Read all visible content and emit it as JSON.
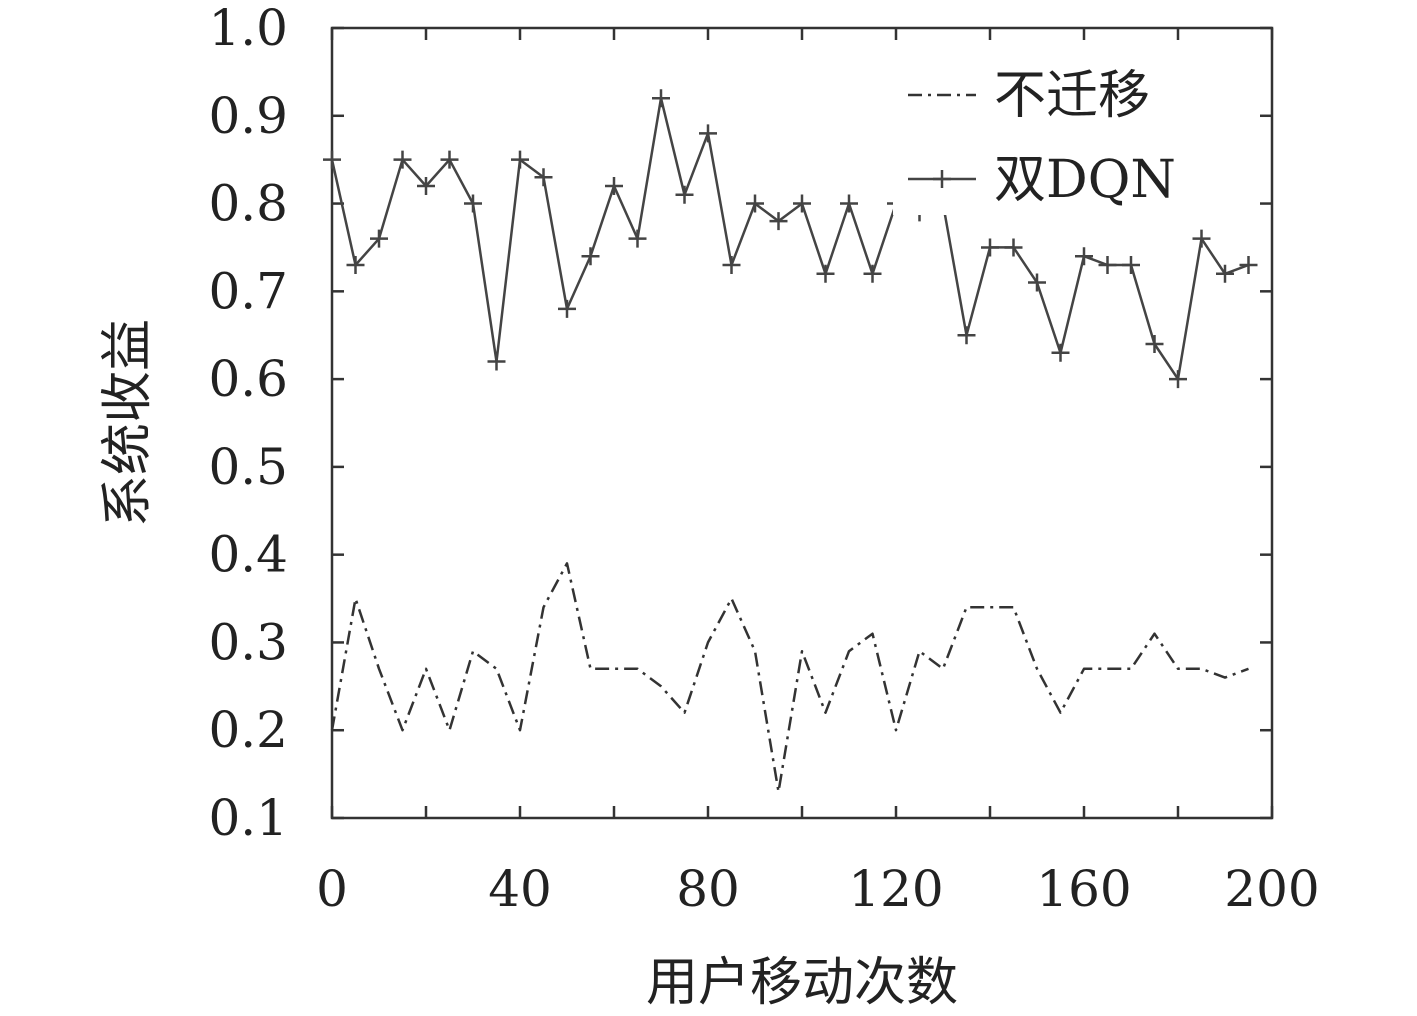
{
  "chart_data": {
    "type": "line",
    "xlabel": "用户移动次数",
    "ylabel": "系统收益",
    "xlim": [
      0,
      200
    ],
    "ylim": [
      0.1,
      1.0
    ],
    "x_ticks": [
      0,
      40,
      80,
      120,
      160,
      200
    ],
    "x_tick_labels": [
      "0",
      "40",
      "80",
      "120",
      "160",
      "200"
    ],
    "y_ticks": [
      0.1,
      0.2,
      0.3,
      0.4,
      0.5,
      0.6,
      0.7,
      0.8,
      0.9,
      1.0
    ],
    "y_tick_labels": [
      "0.1",
      "0.2",
      "0.3",
      "0.4",
      "0.5",
      "0.6",
      "0.7",
      "0.8",
      "0.9",
      "1.0"
    ],
    "grid": false,
    "legend_position": "top-right",
    "x": [
      0,
      5,
      10,
      15,
      20,
      25,
      30,
      35,
      40,
      45,
      50,
      55,
      60,
      65,
      70,
      75,
      80,
      85,
      90,
      95,
      100,
      105,
      110,
      115,
      120,
      125,
      130,
      135,
      140,
      145,
      150,
      155,
      160,
      165,
      170,
      175,
      180,
      185,
      190,
      195
    ],
    "series": [
      {
        "name": "不迁移",
        "style": "dash-dot",
        "color": "#333333",
        "values": [
          0.2,
          0.35,
          0.27,
          0.2,
          0.27,
          0.2,
          0.29,
          0.27,
          0.2,
          0.34,
          0.39,
          0.27,
          0.27,
          0.27,
          0.25,
          0.22,
          0.3,
          0.35,
          0.29,
          0.13,
          0.29,
          0.22,
          0.29,
          0.31,
          0.2,
          0.29,
          0.27,
          0.34,
          0.34,
          0.34,
          0.27,
          0.22,
          0.27,
          0.27,
          0.27,
          0.31,
          0.27,
          0.27,
          0.26,
          0.27
        ]
      },
      {
        "name": "双DQN",
        "style": "solid-plus",
        "color": "#444444",
        "values": [
          0.85,
          0.73,
          0.76,
          0.85,
          0.82,
          0.85,
          0.8,
          0.62,
          0.85,
          0.83,
          0.68,
          0.74,
          0.82,
          0.76,
          0.92,
          0.81,
          0.88,
          0.73,
          0.8,
          0.78,
          0.8,
          0.72,
          0.8,
          0.72,
          0.8,
          0.79,
          0.8,
          0.65,
          0.75,
          0.75,
          0.71,
          0.63,
          0.74,
          0.73,
          0.73,
          0.64,
          0.6,
          0.76,
          0.72,
          0.73
        ]
      }
    ]
  }
}
